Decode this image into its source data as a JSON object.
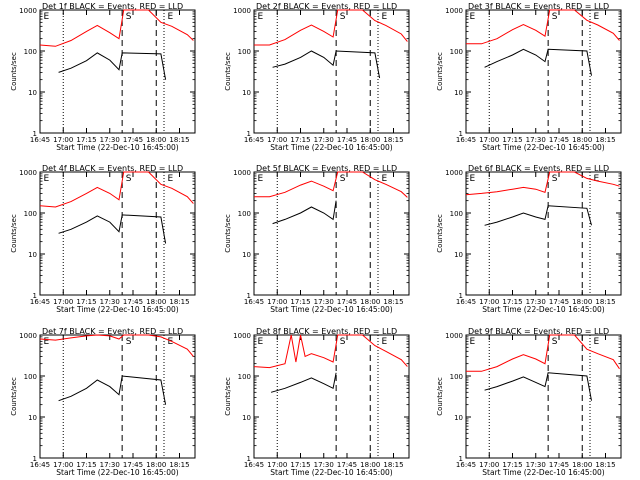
{
  "chart_data": {
    "type": "line",
    "y_scale": "log",
    "ylim": [
      1,
      1000
    ],
    "xlim": [
      "16:45",
      "18:25"
    ],
    "x_ticks": [
      "16:45",
      "17:00",
      "17:15",
      "17:30",
      "17:45",
      "18:00",
      "18:15"
    ],
    "y_ticks": [
      "1",
      "10",
      "100",
      "1000"
    ],
    "ylabel": "Counts/sec",
    "xlabel": "Start Time (22-Dec-10 16:45:00)",
    "markers": {
      "dotted_lines": [
        "17:00",
        "18:05"
      ],
      "dashed_lines": [
        "17:38",
        "18:00"
      ],
      "labels": [
        {
          "text": "E",
          "at": "16:46"
        },
        {
          "text": "S",
          "at": "17:39"
        },
        {
          "text": "E",
          "at": "18:06"
        }
      ]
    },
    "colors": {
      "events": "#000000",
      "lld": "#ff0000"
    },
    "panels": [
      {
        "title": "Det 1f BLACK = Events, RED = LLD",
        "black": [
          {
            "t": "16:57",
            "v": 30
          },
          {
            "t": "17:05",
            "v": 38
          },
          {
            "t": "17:15",
            "v": 58
          },
          {
            "t": "17:22",
            "v": 90
          },
          {
            "t": "17:30",
            "v": 60
          },
          {
            "t": "17:36",
            "v": 35
          },
          {
            "t": "17:38",
            "v": 90
          },
          {
            "t": "18:03",
            "v": 85
          },
          {
            "t": "18:06",
            "v": 20
          }
        ],
        "red": [
          {
            "t": "16:45",
            "v": 140
          },
          {
            "t": "16:55",
            "v": 130
          },
          {
            "t": "17:05",
            "v": 180
          },
          {
            "t": "17:15",
            "v": 300
          },
          {
            "t": "17:22",
            "v": 420
          },
          {
            "t": "17:30",
            "v": 280
          },
          {
            "t": "17:36",
            "v": 200
          },
          {
            "t": "17:39",
            "v": 1000
          },
          {
            "t": "17:55",
            "v": 1000
          },
          {
            "t": "18:03",
            "v": 500
          },
          {
            "t": "18:10",
            "v": 400
          },
          {
            "t": "18:20",
            "v": 250
          },
          {
            "t": "18:24",
            "v": 180
          }
        ]
      },
      {
        "title": "Det 2f BLACK = Events, RED = LLD",
        "black": [
          {
            "t": "16:57",
            "v": 40
          },
          {
            "t": "17:05",
            "v": 48
          },
          {
            "t": "17:15",
            "v": 70
          },
          {
            "t": "17:22",
            "v": 100
          },
          {
            "t": "17:30",
            "v": 70
          },
          {
            "t": "17:36",
            "v": 45
          },
          {
            "t": "17:38",
            "v": 100
          },
          {
            "t": "18:03",
            "v": 90
          },
          {
            "t": "18:06",
            "v": 22
          }
        ],
        "red": [
          {
            "t": "16:45",
            "v": 140
          },
          {
            "t": "16:55",
            "v": 140
          },
          {
            "t": "17:05",
            "v": 190
          },
          {
            "t": "17:15",
            "v": 320
          },
          {
            "t": "17:22",
            "v": 430
          },
          {
            "t": "17:30",
            "v": 300
          },
          {
            "t": "17:36",
            "v": 220
          },
          {
            "t": "17:39",
            "v": 1000
          },
          {
            "t": "17:55",
            "v": 1000
          },
          {
            "t": "18:03",
            "v": 550
          },
          {
            "t": "18:10",
            "v": 420
          },
          {
            "t": "18:20",
            "v": 260
          },
          {
            "t": "18:24",
            "v": 170
          }
        ]
      },
      {
        "title": "Det 3f BLACK = Events, RED = LLD",
        "black": [
          {
            "t": "16:57",
            "v": 40
          },
          {
            "t": "17:05",
            "v": 55
          },
          {
            "t": "17:15",
            "v": 80
          },
          {
            "t": "17:22",
            "v": 110
          },
          {
            "t": "17:30",
            "v": 80
          },
          {
            "t": "17:36",
            "v": 55
          },
          {
            "t": "17:38",
            "v": 110
          },
          {
            "t": "18:03",
            "v": 100
          },
          {
            "t": "18:06",
            "v": 25
          }
        ],
        "red": [
          {
            "t": "16:45",
            "v": 150
          },
          {
            "t": "16:55",
            "v": 150
          },
          {
            "t": "17:05",
            "v": 200
          },
          {
            "t": "17:15",
            "v": 330
          },
          {
            "t": "17:22",
            "v": 440
          },
          {
            "t": "17:30",
            "v": 320
          },
          {
            "t": "17:36",
            "v": 230
          },
          {
            "t": "17:39",
            "v": 1000
          },
          {
            "t": "17:55",
            "v": 1000
          },
          {
            "t": "18:03",
            "v": 560
          },
          {
            "t": "18:10",
            "v": 430
          },
          {
            "t": "18:20",
            "v": 270
          },
          {
            "t": "18:24",
            "v": 180
          }
        ]
      },
      {
        "title": "Det 4f BLACK = Events, RED = LLD",
        "black": [
          {
            "t": "16:57",
            "v": 32
          },
          {
            "t": "17:05",
            "v": 40
          },
          {
            "t": "17:15",
            "v": 60
          },
          {
            "t": "17:22",
            "v": 85
          },
          {
            "t": "17:30",
            "v": 60
          },
          {
            "t": "17:36",
            "v": 35
          },
          {
            "t": "17:38",
            "v": 90
          },
          {
            "t": "18:03",
            "v": 80
          },
          {
            "t": "18:06",
            "v": 18
          }
        ],
        "red": [
          {
            "t": "16:45",
            "v": 150
          },
          {
            "t": "16:55",
            "v": 140
          },
          {
            "t": "17:05",
            "v": 190
          },
          {
            "t": "17:15",
            "v": 300
          },
          {
            "t": "17:22",
            "v": 420
          },
          {
            "t": "17:30",
            "v": 300
          },
          {
            "t": "17:36",
            "v": 210
          },
          {
            "t": "17:39",
            "v": 1000
          },
          {
            "t": "17:55",
            "v": 1000
          },
          {
            "t": "18:03",
            "v": 500
          },
          {
            "t": "18:10",
            "v": 400
          },
          {
            "t": "18:20",
            "v": 250
          },
          {
            "t": "18:24",
            "v": 170
          }
        ]
      },
      {
        "title": "Det 5f BLACK = Events, RED = LLD",
        "black": [
          {
            "t": "16:57",
            "v": 55
          },
          {
            "t": "17:05",
            "v": 70
          },
          {
            "t": "17:15",
            "v": 100
          },
          {
            "t": "17:22",
            "v": 140
          },
          {
            "t": "17:30",
            "v": 100
          },
          {
            "t": "17:36",
            "v": 70
          },
          {
            "t": "17:38",
            "v": 200
          }
        ],
        "red": [
          {
            "t": "16:45",
            "v": 250
          },
          {
            "t": "16:55",
            "v": 250
          },
          {
            "t": "17:05",
            "v": 320
          },
          {
            "t": "17:15",
            "v": 480
          },
          {
            "t": "17:22",
            "v": 600
          },
          {
            "t": "17:30",
            "v": 450
          },
          {
            "t": "17:36",
            "v": 350
          },
          {
            "t": "17:39",
            "v": 1000
          },
          {
            "t": "17:55",
            "v": 1000
          },
          {
            "t": "18:03",
            "v": 650
          },
          {
            "t": "18:10",
            "v": 500
          },
          {
            "t": "18:20",
            "v": 330
          },
          {
            "t": "18:24",
            "v": 240
          }
        ]
      },
      {
        "title": "Det 6f BLACK = Events, RED = LLD",
        "black": [
          {
            "t": "16:57",
            "v": 50
          },
          {
            "t": "17:05",
            "v": 60
          },
          {
            "t": "17:15",
            "v": 80
          },
          {
            "t": "17:22",
            "v": 100
          },
          {
            "t": "17:30",
            "v": 80
          },
          {
            "t": "17:36",
            "v": 70
          },
          {
            "t": "17:38",
            "v": 150
          },
          {
            "t": "18:03",
            "v": 130
          },
          {
            "t": "18:06",
            "v": 50
          }
        ],
        "red": [
          {
            "t": "16:45",
            "v": 280
          },
          {
            "t": "16:55",
            "v": 300
          },
          {
            "t": "17:05",
            "v": 330
          },
          {
            "t": "17:15",
            "v": 380
          },
          {
            "t": "17:22",
            "v": 420
          },
          {
            "t": "17:30",
            "v": 380
          },
          {
            "t": "17:36",
            "v": 320
          },
          {
            "t": "17:39",
            "v": 1000
          },
          {
            "t": "17:55",
            "v": 1000
          },
          {
            "t": "18:03",
            "v": 700
          },
          {
            "t": "18:10",
            "v": 600
          },
          {
            "t": "18:20",
            "v": 500
          },
          {
            "t": "18:24",
            "v": 450
          }
        ]
      },
      {
        "title": "Det 7f BLACK = Events, RED = LLD",
        "black": [
          {
            "t": "16:57",
            "v": 25
          },
          {
            "t": "17:05",
            "v": 32
          },
          {
            "t": "17:15",
            "v": 50
          },
          {
            "t": "17:22",
            "v": 80
          },
          {
            "t": "17:30",
            "v": 55
          },
          {
            "t": "17:36",
            "v": 35
          },
          {
            "t": "17:38",
            "v": 100
          },
          {
            "t": "18:03",
            "v": 80
          },
          {
            "t": "18:06",
            "v": 20
          }
        ],
        "red": [
          {
            "t": "16:45",
            "v": 800
          },
          {
            "t": "16:55",
            "v": 750
          },
          {
            "t": "17:05",
            "v": 850
          },
          {
            "t": "17:15",
            "v": 950
          },
          {
            "t": "17:22",
            "v": 1000
          },
          {
            "t": "17:30",
            "v": 950
          },
          {
            "t": "17:36",
            "v": 800
          },
          {
            "t": "17:39",
            "v": 1000
          },
          {
            "t": "17:55",
            "v": 1000
          },
          {
            "t": "18:03",
            "v": 900
          },
          {
            "t": "18:10",
            "v": 700
          },
          {
            "t": "18:20",
            "v": 450
          },
          {
            "t": "18:24",
            "v": 300
          }
        ]
      },
      {
        "title": "Det 8f BLACK = Events, RED = LLD",
        "black": [
          {
            "t": "16:56",
            "v": 40
          },
          {
            "t": "17:05",
            "v": 50
          },
          {
            "t": "17:15",
            "v": 70
          },
          {
            "t": "17:22",
            "v": 90
          },
          {
            "t": "17:30",
            "v": 65
          },
          {
            "t": "17:36",
            "v": 50
          },
          {
            "t": "17:38",
            "v": 120
          }
        ],
        "red": [
          {
            "t": "16:45",
            "v": 170
          },
          {
            "t": "16:55",
            "v": 160
          },
          {
            "t": "17:05",
            "v": 200
          },
          {
            "t": "17:09",
            "v": 1000
          },
          {
            "t": "17:12",
            "v": 220
          },
          {
            "t": "17:15",
            "v": 1000
          },
          {
            "t": "17:18",
            "v": 300
          },
          {
            "t": "17:22",
            "v": 350
          },
          {
            "t": "17:30",
            "v": 280
          },
          {
            "t": "17:36",
            "v": 220
          },
          {
            "t": "17:39",
            "v": 1000
          },
          {
            "t": "17:55",
            "v": 1000
          },
          {
            "t": "18:03",
            "v": 550
          },
          {
            "t": "18:10",
            "v": 400
          },
          {
            "t": "18:20",
            "v": 250
          },
          {
            "t": "18:24",
            "v": 170
          }
        ]
      },
      {
        "title": "Det 9f BLACK = Events, RED = LLD",
        "black": [
          {
            "t": "16:57",
            "v": 45
          },
          {
            "t": "17:05",
            "v": 55
          },
          {
            "t": "17:15",
            "v": 75
          },
          {
            "t": "17:22",
            "v": 95
          },
          {
            "t": "17:30",
            "v": 70
          },
          {
            "t": "17:36",
            "v": 55
          },
          {
            "t": "17:38",
            "v": 120
          },
          {
            "t": "18:03",
            "v": 100
          },
          {
            "t": "18:06",
            "v": 25
          }
        ],
        "red": [
          {
            "t": "16:45",
            "v": 130
          },
          {
            "t": "16:55",
            "v": 130
          },
          {
            "t": "17:05",
            "v": 170
          },
          {
            "t": "17:15",
            "v": 260
          },
          {
            "t": "17:22",
            "v": 330
          },
          {
            "t": "17:30",
            "v": 260
          },
          {
            "t": "17:36",
            "v": 200
          },
          {
            "t": "17:39",
            "v": 1000
          },
          {
            "t": "17:55",
            "v": 1000
          },
          {
            "t": "18:03",
            "v": 450
          },
          {
            "t": "18:10",
            "v": 350
          },
          {
            "t": "18:20",
            "v": 250
          },
          {
            "t": "18:24",
            "v": 150
          }
        ]
      }
    ]
  }
}
